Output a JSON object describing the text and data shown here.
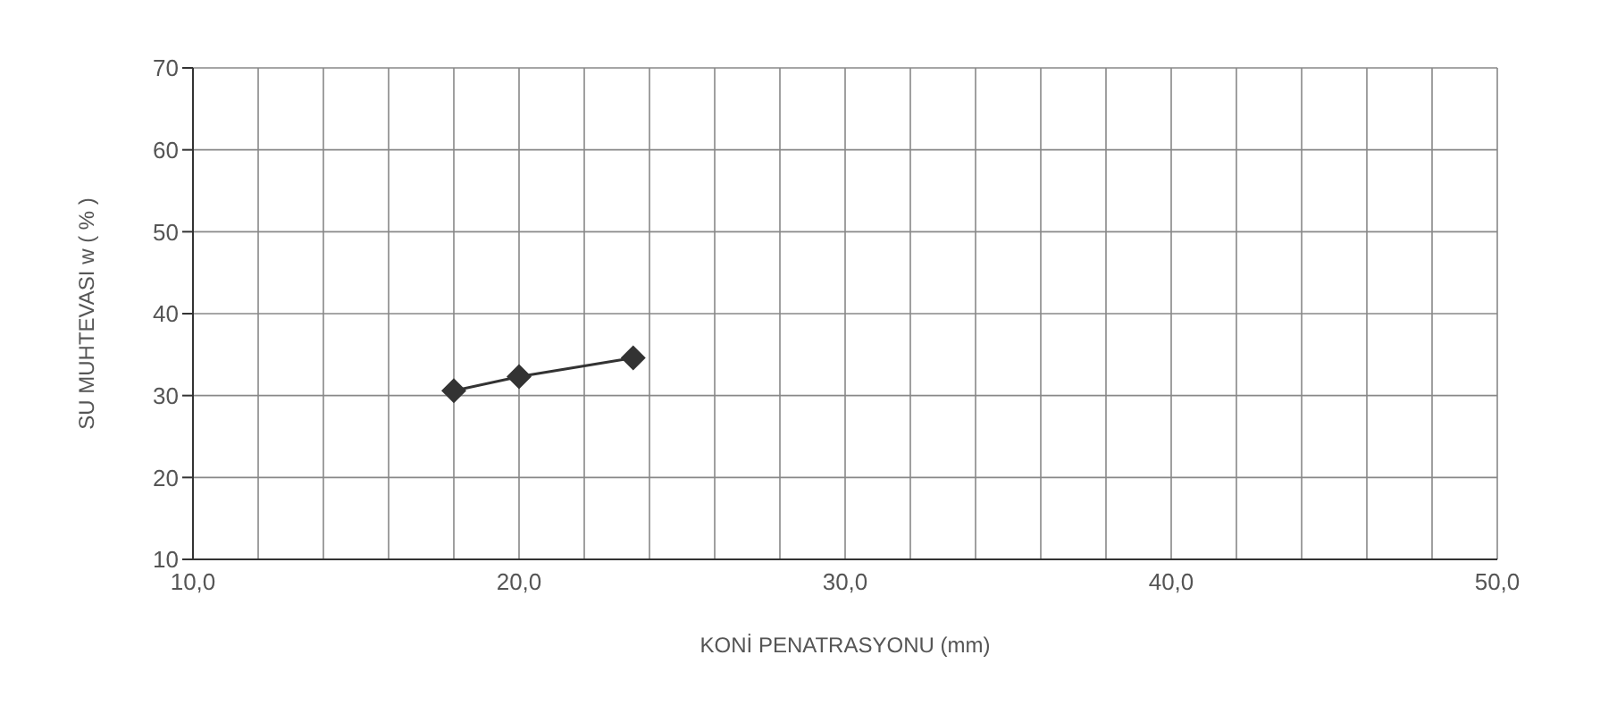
{
  "chart_data": {
    "type": "line",
    "xlabel": "KONİ PENATRASYONU  (mm)",
    "ylabel": "SU MUHTEVASI  w ( % )",
    "x": [
      18.0,
      20.0,
      23.5
    ],
    "series": [
      {
        "color": "#333333",
        "values": [
          30.6,
          32.3,
          34.6
        ]
      }
    ],
    "xlim": [
      10,
      50
    ],
    "xticks": [
      {
        "value": 10,
        "label": "10,0"
      },
      {
        "value": 12,
        "label": null
      },
      {
        "value": 14,
        "label": null
      },
      {
        "value": 16,
        "label": null
      },
      {
        "value": 18,
        "label": null
      },
      {
        "value": 20,
        "label": "20,0"
      },
      {
        "value": 22,
        "label": null
      },
      {
        "value": 24,
        "label": null
      },
      {
        "value": 26,
        "label": null
      },
      {
        "value": 28,
        "label": null
      },
      {
        "value": 30,
        "label": "30,0"
      },
      {
        "value": 32,
        "label": null
      },
      {
        "value": 34,
        "label": null
      },
      {
        "value": 36,
        "label": null
      },
      {
        "value": 38,
        "label": null
      },
      {
        "value": 40,
        "label": "40,0"
      },
      {
        "value": 42,
        "label": null
      },
      {
        "value": 44,
        "label": null
      },
      {
        "value": 46,
        "label": null
      },
      {
        "value": 48,
        "label": null
      },
      {
        "value": 50,
        "label": "50,0"
      }
    ],
    "ylim": [
      10,
      70
    ],
    "yticks": [
      10,
      20,
      30,
      40,
      50,
      60,
      70
    ],
    "grid": true,
    "marker": "diamond",
    "line_style": "solid"
  }
}
